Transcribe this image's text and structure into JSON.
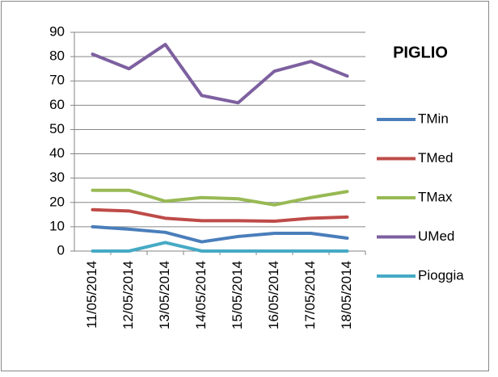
{
  "chart_data": {
    "type": "line",
    "title": "PIGLIO",
    "categories": [
      "11/05/2014",
      "12/05/2014",
      "13/05/2014",
      "14/05/2014",
      "15/05/2014",
      "16/05/2014",
      "17/05/2014",
      "18/05/2014"
    ],
    "series": [
      {
        "name": "TMin",
        "color": "#4a7ebb",
        "values": [
          10,
          9,
          7.7,
          3.8,
          6,
          7.3,
          7.3,
          5.3
        ]
      },
      {
        "name": "TMed",
        "color": "#be4b48",
        "values": [
          17,
          16.5,
          13.5,
          12.5,
          12.5,
          12.3,
          13.5,
          14
        ]
      },
      {
        "name": "TMax",
        "color": "#98b954",
        "values": [
          25,
          25,
          20.5,
          22,
          21.5,
          19,
          22,
          24.5
        ]
      },
      {
        "name": "UMed",
        "color": "#7d60a0",
        "values": [
          81,
          75,
          85,
          64,
          61,
          74,
          78,
          72
        ]
      },
      {
        "name": "Pioggia",
        "color": "#46aac5",
        "values": [
          0,
          0,
          3.5,
          0,
          0,
          0,
          0,
          0
        ]
      }
    ],
    "ylim": [
      0,
      90
    ],
    "yticks": [
      0,
      10,
      20,
      30,
      40,
      50,
      60,
      70,
      80,
      90
    ],
    "grid": true,
    "legend": "right"
  }
}
